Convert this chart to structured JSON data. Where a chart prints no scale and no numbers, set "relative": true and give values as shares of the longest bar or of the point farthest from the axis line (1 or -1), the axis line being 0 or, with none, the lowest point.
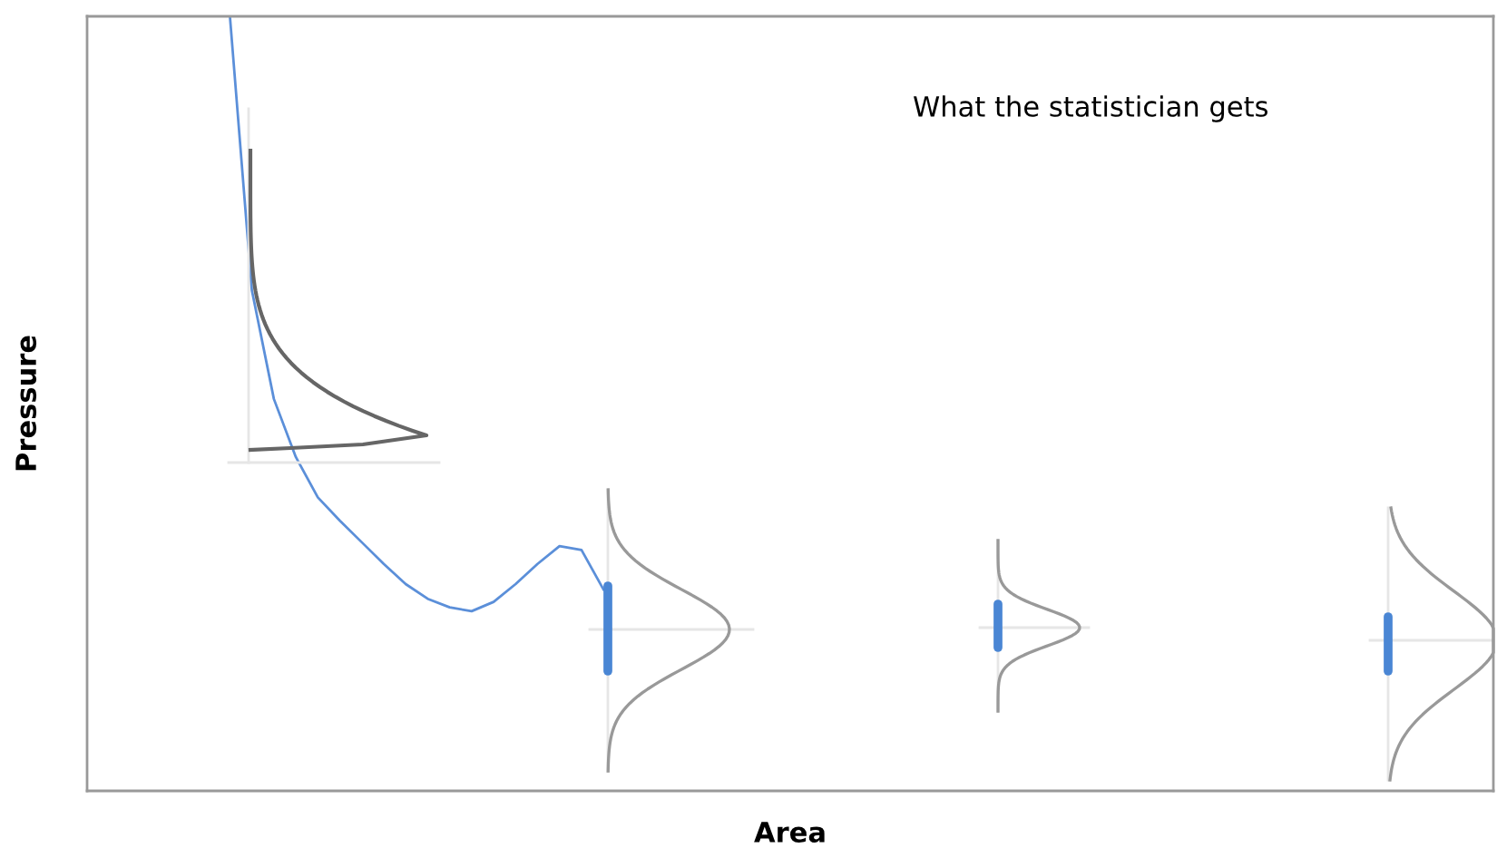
{
  "chart_data": {
    "type": "line",
    "xlabel": "Area",
    "ylabel": "Pressure",
    "relative": true,
    "tick_labels": false,
    "grid": false,
    "legend": false,
    "annotations": [
      "What the statistician gets"
    ],
    "categories": [
      null,
      null,
      null,
      null,
      null,
      null,
      null,
      null,
      null,
      null,
      null,
      null,
      null,
      null,
      null,
      null,
      null,
      null,
      null,
      null,
      null,
      null,
      null,
      null,
      null,
      null,
      null,
      null,
      null,
      null,
      null,
      null,
      null,
      null,
      null,
      null,
      null,
      null,
      null,
      null,
      null,
      null,
      null,
      null,
      null,
      null,
      null,
      null,
      null,
      null,
      null,
      null,
      null,
      null,
      null,
      null,
      null,
      null,
      null,
      null,
      null,
      null,
      null,
      null
    ],
    "series": [
      {
        "color": "#5b8fd9",
        "values": [
          null,
          null,
          null,
          null,
          null,
          null,
          1.0,
          0.646,
          0.506,
          0.431,
          0.379,
          0.349,
          0.321,
          0.293,
          0.267,
          0.248,
          0.237,
          0.232,
          0.244,
          0.267,
          0.293,
          0.316,
          0.311,
          0.26,
          null,
          null,
          null,
          null,
          null,
          null,
          null,
          null,
          null,
          null,
          null,
          null,
          null,
          null,
          null,
          null,
          null,
          null,
          null,
          null,
          null,
          null,
          null,
          null,
          null,
          null,
          null,
          null,
          null,
          null,
          null,
          null,
          null,
          null,
          null,
          null,
          null,
          null,
          null,
          null
        ]
      }
    ]
  }
}
